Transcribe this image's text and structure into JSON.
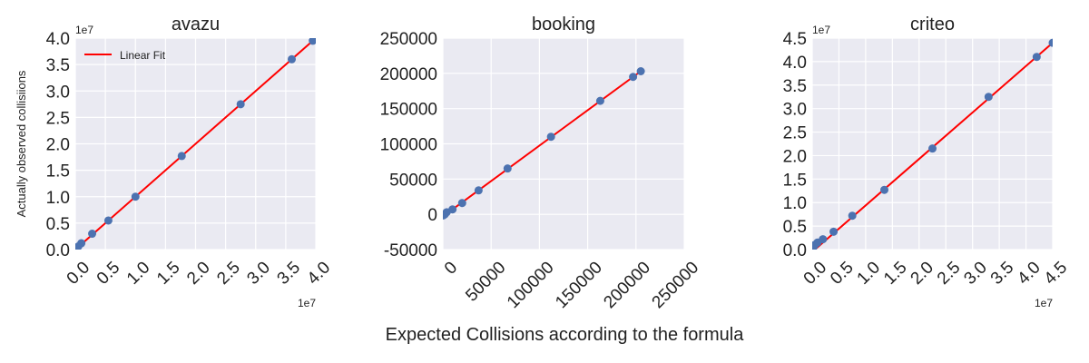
{
  "figure": {
    "xlabel": "Expected Collisions according to the formula",
    "colors": {
      "background": "#eaeaf2",
      "grid": "#ffffff",
      "point": "#4c72b0",
      "fit": "#ff0000"
    }
  },
  "chart_data": [
    {
      "type": "scatter",
      "title": "avazu",
      "ylabel": "Actually observed collisiions",
      "xlim": [
        0,
        4.0
      ],
      "ylim": [
        0,
        4.0
      ],
      "x_ticks": [
        "0.0",
        "0.5",
        "1.0",
        "1.5",
        "2.0",
        "2.5",
        "3.0",
        "3.5",
        "4.0"
      ],
      "y_ticks": [
        "0.0",
        "0.5",
        "1.0",
        "1.5",
        "2.0",
        "2.5",
        "3.0",
        "3.5",
        "4.0"
      ],
      "x_offset_label": "1e7",
      "y_offset_label": "1e7",
      "legend": {
        "entries": [
          "Linear Fit"
        ],
        "position": "upper-left"
      },
      "points": [
        [
          0.02,
          0.03
        ],
        [
          0.05,
          0.06
        ],
        [
          0.1,
          0.12
        ],
        [
          0.28,
          0.3
        ],
        [
          0.55,
          0.55
        ],
        [
          1.0,
          1.0
        ],
        [
          1.77,
          1.77
        ],
        [
          2.75,
          2.75
        ],
        [
          3.6,
          3.6
        ],
        [
          3.95,
          3.95
        ]
      ],
      "fit": [
        [
          0,
          0
        ],
        [
          4.0,
          4.0
        ]
      ]
    },
    {
      "type": "scatter",
      "title": "booking",
      "xlim": [
        0,
        250000
      ],
      "ylim": [
        -50000,
        250000
      ],
      "x_ticks": [
        "0",
        "50000",
        "100000",
        "150000",
        "200000",
        "250000"
      ],
      "y_ticks": [
        "-50000",
        "0",
        "50000",
        "100000",
        "150000",
        "200000",
        "250000"
      ],
      "points": [
        [
          500,
          -1500
        ],
        [
          2000,
          0
        ],
        [
          4000,
          3000
        ],
        [
          10000,
          7000
        ],
        [
          20000,
          16000
        ],
        [
          37000,
          34000
        ],
        [
          67000,
          65000
        ],
        [
          112000,
          110000
        ],
        [
          163000,
          161000
        ],
        [
          197000,
          195000
        ],
        [
          205000,
          203000
        ]
      ],
      "fit": [
        [
          0,
          -3000
        ],
        [
          205000,
          203000
        ]
      ]
    },
    {
      "type": "scatter",
      "title": "criteo",
      "xlim": [
        0,
        4.5
      ],
      "ylim": [
        0,
        4.5
      ],
      "x_ticks": [
        "0.0",
        "0.5",
        "1.0",
        "1.5",
        "2.0",
        "2.5",
        "3.0",
        "3.5",
        "4.0",
        "4.5"
      ],
      "y_ticks": [
        "0.0",
        "0.5",
        "1.0",
        "1.5",
        "2.0",
        "2.5",
        "3.0",
        "3.5",
        "4.0",
        "4.5"
      ],
      "x_offset_label": "1e7",
      "y_offset_label": "1e7",
      "points": [
        [
          0.02,
          0.05
        ],
        [
          0.05,
          0.1
        ],
        [
          0.1,
          0.15
        ],
        [
          0.2,
          0.22
        ],
        [
          0.4,
          0.38
        ],
        [
          0.75,
          0.72
        ],
        [
          1.35,
          1.27
        ],
        [
          2.25,
          2.15
        ],
        [
          3.3,
          3.25
        ],
        [
          4.2,
          4.1
        ],
        [
          4.5,
          4.4
        ]
      ],
      "fit": [
        [
          0.05,
          0
        ],
        [
          4.5,
          4.4
        ]
      ]
    }
  ]
}
